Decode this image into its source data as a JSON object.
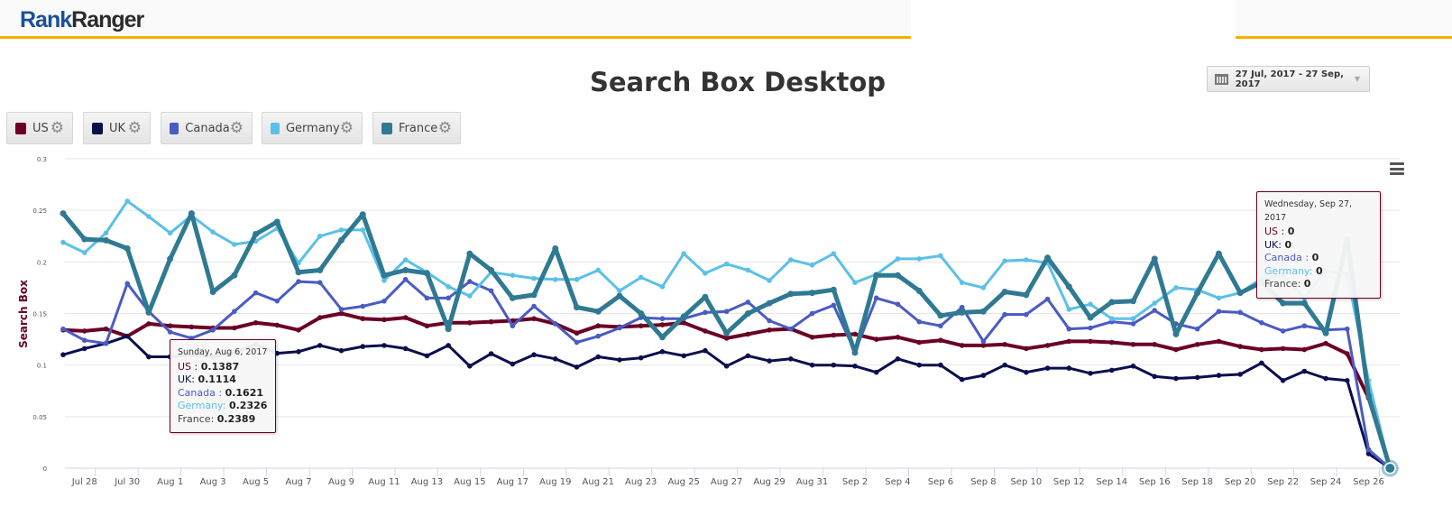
{
  "header": {
    "logo_part1": "Rank",
    "logo_part2": "Ranger"
  },
  "title": "Search Box Desktop",
  "date_range": {
    "label": "27 Jul, 2017 - 27 Sep, 2017",
    "icon": "calendar-icon",
    "dropdown_icon": "caret-down-icon"
  },
  "legend": [
    {
      "label": "US",
      "color": "#6b0025"
    },
    {
      "label": "UK",
      "color": "#0a0f4d"
    },
    {
      "label": "Canada",
      "color": "#4a5bc4"
    },
    {
      "label": "Germany",
      "color": "#5bc0e8"
    },
    {
      "label": "France",
      "color": "#2f7a92"
    }
  ],
  "tooltips": [
    {
      "date": "Sunday, Aug 6, 2017",
      "rows": [
        {
          "label": "US : ",
          "value": "0.1387"
        },
        {
          "label": "UK: ",
          "value": "0.1114"
        },
        {
          "label": "Canada : ",
          "value": "0.1621"
        },
        {
          "label": "Germany: ",
          "value": "0.2326"
        },
        {
          "label": "France: ",
          "value": "0.2389"
        }
      ]
    },
    {
      "date": "Wednesday, Sep 27, 2017",
      "rows": [
        {
          "label": "US : ",
          "value": "0"
        },
        {
          "label": "UK: ",
          "value": "0"
        },
        {
          "label": "Canada : ",
          "value": "0"
        },
        {
          "label": "Germany: ",
          "value": "0"
        },
        {
          "label": "France: ",
          "value": "0"
        }
      ]
    }
  ],
  "chart_data": {
    "type": "line",
    "title": "Search Box Desktop",
    "ylabel": "Search Box",
    "xlabel": "",
    "ylim": [
      0,
      0.3
    ],
    "yticks": [
      "0",
      "0.05",
      "0.1",
      "0.15",
      "0.2",
      "0.25",
      "0.3"
    ],
    "grid": true,
    "legend_placement": "top-left",
    "x": [
      "Jul 27",
      "Jul 28",
      "Jul 29",
      "Jul 30",
      "Jul 31",
      "Aug 1",
      "Aug 2",
      "Aug 3",
      "Aug 4",
      "Aug 5",
      "Aug 6",
      "Aug 7",
      "Aug 8",
      "Aug 9",
      "Aug 10",
      "Aug 11",
      "Aug 12",
      "Aug 13",
      "Aug 14",
      "Aug 15",
      "Aug 16",
      "Aug 17",
      "Aug 18",
      "Aug 19",
      "Aug 20",
      "Aug 21",
      "Aug 22",
      "Aug 23",
      "Aug 24",
      "Aug 25",
      "Aug 26",
      "Aug 27",
      "Aug 28",
      "Aug 29",
      "Aug 30",
      "Aug 31",
      "Sep 1",
      "Sep 2",
      "Sep 3",
      "Sep 4",
      "Sep 5",
      "Sep 6",
      "Sep 7",
      "Sep 8",
      "Sep 9",
      "Sep 10",
      "Sep 11",
      "Sep 12",
      "Sep 13",
      "Sep 14",
      "Sep 15",
      "Sep 16",
      "Sep 17",
      "Sep 18",
      "Sep 19",
      "Sep 20",
      "Sep 21",
      "Sep 22",
      "Sep 23",
      "Sep 24",
      "Sep 25",
      "Sep 26",
      "Sep 27"
    ],
    "xticks": [
      "Jul 28",
      "Jul 30",
      "Aug 1",
      "Aug 3",
      "Aug 5",
      "Aug 7",
      "Aug 9",
      "Aug 11",
      "Aug 13",
      "Aug 15",
      "Aug 17",
      "Aug 19",
      "Aug 21",
      "Aug 23",
      "Aug 25",
      "Aug 27",
      "Aug 29",
      "Aug 31",
      "Sep 2",
      "Sep 4",
      "Sep 6",
      "Sep 8",
      "Sep 10",
      "Sep 12",
      "Sep 14",
      "Sep 16",
      "Sep 18",
      "Sep 20",
      "Sep 22",
      "Sep 24",
      "Sep 26"
    ],
    "series": [
      {
        "name": "US",
        "color": "#6b0025",
        "values": [
          0.134,
          0.133,
          0.135,
          0.128,
          0.14,
          0.138,
          0.137,
          0.136,
          0.136,
          0.141,
          0.1387,
          0.134,
          0.146,
          0.15,
          0.145,
          0.144,
          0.146,
          0.138,
          0.141,
          0.141,
          0.142,
          0.143,
          0.145,
          0.14,
          0.131,
          0.138,
          0.137,
          0.138,
          0.139,
          0.141,
          0.133,
          0.126,
          0.13,
          0.134,
          0.135,
          0.127,
          0.129,
          0.13,
          0.125,
          0.127,
          0.122,
          0.124,
          0.119,
          0.119,
          0.12,
          0.116,
          0.119,
          0.123,
          0.123,
          0.122,
          0.12,
          0.12,
          0.115,
          0.12,
          0.123,
          0.118,
          0.115,
          0.116,
          0.115,
          0.121,
          0.111,
          0.068,
          0
        ]
      },
      {
        "name": "UK",
        "color": "#0a0f4d",
        "values": [
          0.11,
          0.116,
          0.121,
          0.128,
          0.108,
          0.108,
          0.11,
          0.108,
          0.112,
          0.12,
          0.1114,
          0.113,
          0.119,
          0.114,
          0.118,
          0.119,
          0.116,
          0.109,
          0.119,
          0.099,
          0.111,
          0.101,
          0.11,
          0.106,
          0.098,
          0.108,
          0.105,
          0.107,
          0.113,
          0.109,
          0.114,
          0.099,
          0.109,
          0.104,
          0.106,
          0.1,
          0.1,
          0.099,
          0.093,
          0.106,
          0.1,
          0.1,
          0.086,
          0.09,
          0.1,
          0.093,
          0.097,
          0.097,
          0.092,
          0.095,
          0.099,
          0.089,
          0.087,
          0.088,
          0.09,
          0.091,
          0.102,
          0.085,
          0.094,
          0.087,
          0.085,
          0.014,
          0
        ]
      },
      {
        "name": "Canada",
        "color": "#4a5bc4",
        "values": [
          0.135,
          0.124,
          0.121,
          0.179,
          0.152,
          0.132,
          0.126,
          0.134,
          0.152,
          0.17,
          0.1621,
          0.181,
          0.18,
          0.154,
          0.157,
          0.162,
          0.183,
          0.165,
          0.165,
          0.181,
          0.172,
          0.138,
          0.157,
          0.14,
          0.122,
          0.128,
          0.136,
          0.146,
          0.145,
          0.145,
          0.151,
          0.152,
          0.161,
          0.143,
          0.135,
          0.15,
          0.158,
          0.113,
          0.165,
          0.159,
          0.142,
          0.138,
          0.156,
          0.123,
          0.149,
          0.149,
          0.164,
          0.135,
          0.136,
          0.142,
          0.14,
          0.153,
          0.14,
          0.135,
          0.152,
          0.151,
          0.141,
          0.133,
          0.138,
          0.134,
          0.135,
          0.018,
          0
        ]
      },
      {
        "name": "Germany",
        "color": "#5bc0e8",
        "values": [
          0.219,
          0.209,
          0.228,
          0.259,
          0.244,
          0.228,
          0.245,
          0.229,
          0.217,
          0.22,
          0.2326,
          0.199,
          0.225,
          0.231,
          0.231,
          0.182,
          0.202,
          0.19,
          0.176,
          0.167,
          0.19,
          0.187,
          0.184,
          0.183,
          0.183,
          0.192,
          0.172,
          0.185,
          0.176,
          0.208,
          0.189,
          0.198,
          0.192,
          0.182,
          0.202,
          0.197,
          0.208,
          0.18,
          0.188,
          0.203,
          0.203,
          0.206,
          0.18,
          0.175,
          0.201,
          0.202,
          0.199,
          0.154,
          0.159,
          0.145,
          0.145,
          0.16,
          0.175,
          0.173,
          0.165,
          0.17,
          0.184,
          0.187,
          0.165,
          0.192,
          0.188,
          0.085,
          0
        ]
      },
      {
        "name": "France",
        "color": "#2f7a92",
        "values": [
          0.247,
          0.222,
          0.221,
          0.213,
          0.151,
          0.203,
          0.247,
          0.171,
          0.187,
          0.227,
          0.2389,
          0.19,
          0.192,
          0.221,
          0.246,
          0.187,
          0.192,
          0.189,
          0.135,
          0.208,
          0.192,
          0.165,
          0.168,
          0.213,
          0.156,
          0.152,
          0.167,
          0.15,
          0.127,
          0.147,
          0.166,
          0.131,
          0.15,
          0.16,
          0.169,
          0.17,
          0.173,
          0.112,
          0.187,
          0.187,
          0.172,
          0.148,
          0.151,
          0.152,
          0.171,
          0.168,
          0.204,
          0.176,
          0.146,
          0.161,
          0.162,
          0.203,
          0.13,
          0.17,
          0.208,
          0.17,
          0.18,
          0.16,
          0.16,
          0.131,
          0.222,
          0.07,
          0
        ]
      }
    ]
  }
}
